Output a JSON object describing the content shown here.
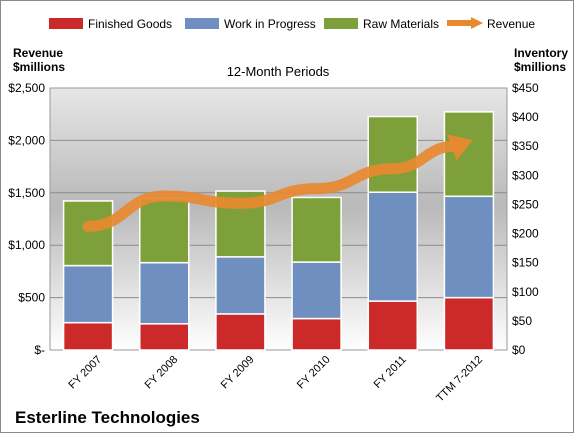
{
  "chart_data": {
    "type": "bar",
    "stacked": true,
    "title": "12-Month Periods",
    "company": "Esterline Technologies",
    "left_axis_label": [
      "Revenue",
      "$millions"
    ],
    "right_axis_label": [
      "Inventory",
      "$millions"
    ],
    "left_ticks": [
      "$2,500",
      "$2,000",
      "$1,500",
      "$1,000",
      "$500",
      "$-"
    ],
    "right_ticks": [
      "$450",
      "$400",
      "$350",
      "$300",
      "$250",
      "$200",
      "$150",
      "$100",
      "$50",
      "$0"
    ],
    "ylim_left": [
      0,
      2500
    ],
    "ylim_right": [
      0,
      450
    ],
    "categories": [
      "FY 2007",
      "FY 2008",
      "FY 2009",
      "FY 2010",
      "FY 2011",
      "TTM 7-2012"
    ],
    "series": [
      {
        "name": "Finished Goods",
        "axis": "right",
        "color": "#cc2a2a",
        "values": [
          47,
          45,
          62,
          54,
          84,
          90
        ]
      },
      {
        "name": "Work in Progress",
        "axis": "right",
        "color": "#6f8fc0",
        "values": [
          98,
          105,
          98,
          97,
          187,
          174
        ]
      },
      {
        "name": "Raw Materials",
        "axis": "right",
        "color": "#7ea03a",
        "values": [
          111,
          110,
          113,
          111,
          130,
          145
        ]
      }
    ],
    "line_series": {
      "name": "Revenue",
      "axis": "left",
      "color": "#e8892f",
      "values": [
        1180,
        1470,
        1400,
        1540,
        1730,
        1990
      ]
    },
    "legend": "top",
    "grid": true
  }
}
